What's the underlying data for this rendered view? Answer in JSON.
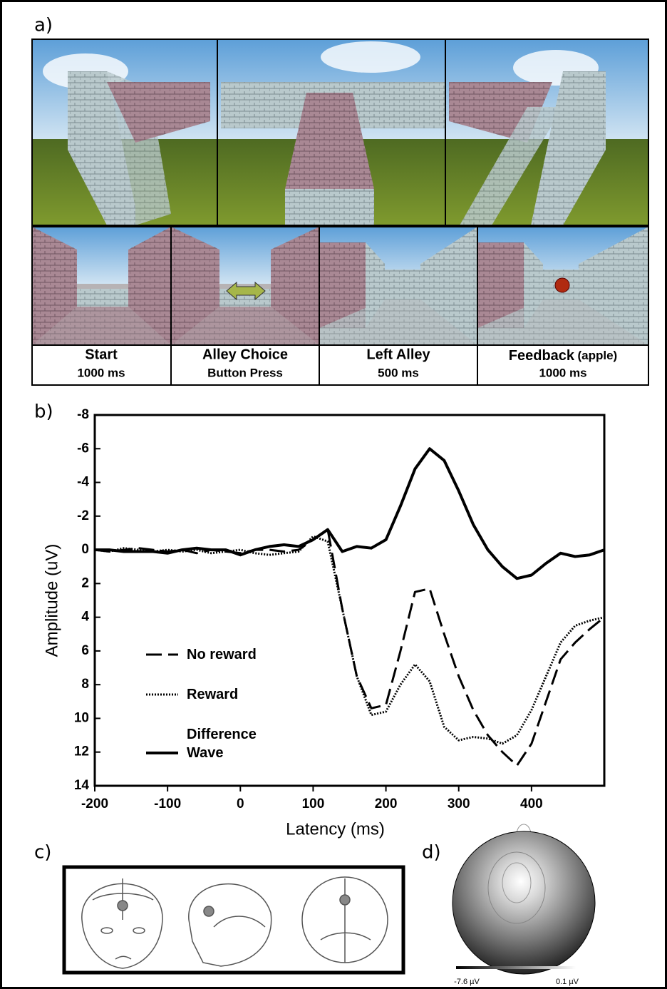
{
  "panel_labels": [
    "a)",
    "b)",
    "c)",
    "d)"
  ],
  "maze": {
    "steps": [
      {
        "title": "Start",
        "detail": "1000 ms"
      },
      {
        "title": "Alley Choice",
        "detail": "Button Press"
      },
      {
        "title": "Left Alley",
        "detail": "500 ms"
      },
      {
        "title": "Feedback",
        "note": "(apple)",
        "detail": "1000 ms"
      }
    ]
  },
  "chart_data": {
    "type": "line",
    "x_label": "Latency (ms)",
    "y_label": "Amplitude (uV)",
    "x": [
      -200,
      -180,
      -160,
      -140,
      -120,
      -100,
      -80,
      -60,
      -40,
      -20,
      0,
      20,
      40,
      60,
      80,
      100,
      120,
      140,
      160,
      180,
      200,
      220,
      240,
      260,
      280,
      300,
      320,
      340,
      360,
      380,
      400,
      420,
      440,
      460,
      480,
      500
    ],
    "series": [
      {
        "name": "No reward",
        "color": "#000",
        "style": "dashed",
        "values": [
          0,
          0.1,
          0,
          -0.1,
          0,
          0.1,
          0,
          0.2,
          0,
          0.1,
          0.2,
          0,
          0,
          0.1,
          0,
          -0.6,
          -1.2,
          3.5,
          7.5,
          9.4,
          9.2,
          6,
          2.5,
          2.3,
          5,
          7.5,
          9.5,
          11,
          12,
          12.8,
          11.5,
          9,
          6.5,
          5.5,
          4.7,
          4
        ]
      },
      {
        "name": "Reward",
        "color": "#000",
        "style": "dotted",
        "values": [
          0,
          0.1,
          -0.1,
          0,
          0.1,
          0,
          0.1,
          0,
          0.2,
          0.1,
          0,
          0.2,
          0.3,
          0.2,
          0.1,
          -0.8,
          -0.5,
          3.5,
          7.5,
          9.8,
          9.6,
          8,
          6.8,
          7.8,
          10.5,
          11.3,
          11.1,
          11.2,
          11.5,
          11,
          9.5,
          7.5,
          5.5,
          4.5,
          4.2,
          4
        ]
      },
      {
        "name": "Difference Wave",
        "color": "#000",
        "style": "solid",
        "values": [
          0,
          0,
          0.1,
          0.1,
          0.1,
          0.2,
          0,
          -0.1,
          0,
          0,
          0.3,
          0,
          -0.2,
          -0.3,
          -0.2,
          -0.6,
          -1.2,
          0.1,
          -0.2,
          -0.1,
          -0.6,
          -2.6,
          -4.8,
          -6,
          -5.3,
          -3.5,
          -1.5,
          0,
          1,
          1.7,
          1.5,
          0.8,
          0.2,
          0.4,
          0.3,
          0
        ]
      }
    ],
    "xlim": [
      -200,
      500
    ],
    "xticks": [
      -200,
      -100,
      0,
      100,
      200,
      300,
      400
    ],
    "ylim": [
      -8,
      14
    ],
    "yticks": [
      -8,
      -6,
      -4,
      -2,
      0,
      2,
      4,
      6,
      8,
      10,
      12,
      14
    ],
    "invert_y": true
  },
  "topomap": {
    "min_label": "-7.6 µV",
    "max_label": "0.1 µV"
  }
}
